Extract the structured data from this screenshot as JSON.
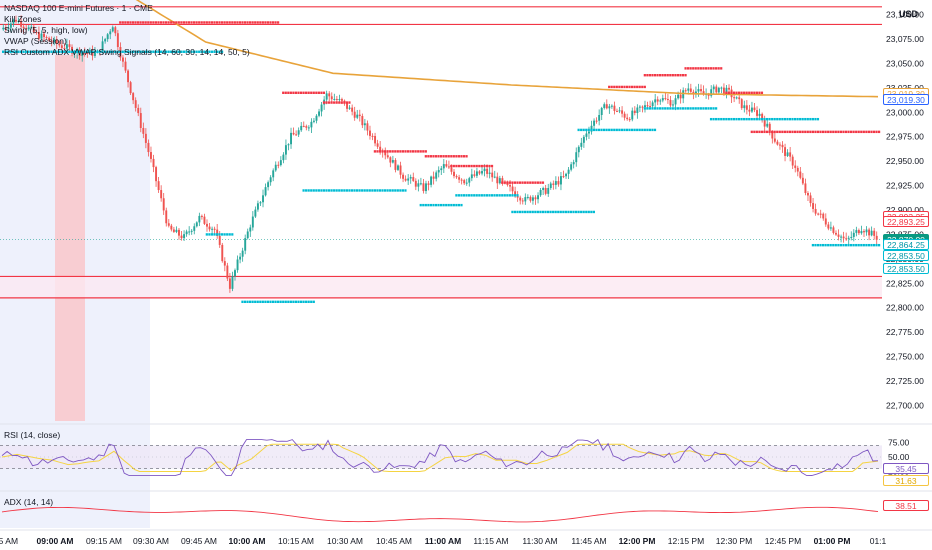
{
  "legend": {
    "main_title": "NASDAQ 100 E-mini Futures · 1 · CME",
    "lines": [
      "Kill Zones",
      "Swing (5, 5, high, low)",
      "VWAP (Session)",
      "RSI Custom ADX VWAP Swing Signals (14, 60, 30, 14, 14, 50, 5)"
    ]
  },
  "currency": "USD",
  "price_axis": {
    "ticks": [
      "23,100.00",
      "23,075.00",
      "23,050.00",
      "23,025.00",
      "23,000.00",
      "22,975.00",
      "22,950.00",
      "22,925.00",
      "22,900.00",
      "22,875.00",
      "22,850.00",
      "22,825.00",
      "22,800.00",
      "22,775.00",
      "22,750.00",
      "22,725.00",
      "22,700.00"
    ]
  },
  "price_tags": [
    {
      "label": "23,019.30",
      "value": 23019.3,
      "style": "outline-orange"
    },
    {
      "label": "23,019.30",
      "value": 23013.0,
      "style": "outline-blue"
    },
    {
      "label": "22,893.25",
      "value": 22893.25,
      "style": "outline-red"
    },
    {
      "label": "22,893.25",
      "value": 22888.0,
      "style": "outline-red"
    },
    {
      "label": "22,870.00",
      "value": 22870.0,
      "style": "fill-green"
    },
    {
      "label": "22,864.25",
      "value": 22864.25,
      "style": "outline-teal"
    },
    {
      "label": "22,853.50",
      "value": 22853.5,
      "style": "outline-teal"
    },
    {
      "label": "22,853.50",
      "value": 22840.0,
      "style": "outline-teal"
    }
  ],
  "time_axis": {
    "labels": [
      {
        "text": "45 AM",
        "bold": false
      },
      {
        "text": "09:00 AM",
        "bold": true
      },
      {
        "text": "09:15 AM",
        "bold": false
      },
      {
        "text": "09:30 AM",
        "bold": false
      },
      {
        "text": "09:45 AM",
        "bold": false
      },
      {
        "text": "10:00 AM",
        "bold": true
      },
      {
        "text": "10:15 AM",
        "bold": false
      },
      {
        "text": "10:30 AM",
        "bold": false
      },
      {
        "text": "10:45 AM",
        "bold": false
      },
      {
        "text": "11:00 AM",
        "bold": true
      },
      {
        "text": "11:15 AM",
        "bold": false
      },
      {
        "text": "11:30 AM",
        "bold": false
      },
      {
        "text": "11:45 AM",
        "bold": false
      },
      {
        "text": "12:00 PM",
        "bold": true
      },
      {
        "text": "12:15 PM",
        "bold": false
      },
      {
        "text": "12:30 PM",
        "bold": false
      },
      {
        "text": "12:45 PM",
        "bold": false
      },
      {
        "text": "01:00 PM",
        "bold": true
      },
      {
        "text": "01:1",
        "bold": false
      }
    ]
  },
  "rsi_pane": {
    "title": "RSI (14, close)",
    "ticks": [
      "75.00",
      "50.00",
      "25.00"
    ],
    "tags": [
      {
        "label": "35.45",
        "style": "outline-purple"
      },
      {
        "label": "31.63",
        "style": "outline-yellow"
      }
    ]
  },
  "adx_pane": {
    "title": "ADX (14, 14)",
    "tags": [
      {
        "label": "38.51",
        "style": "outline-red"
      }
    ]
  },
  "colors": {
    "up": "#26a69a",
    "down": "#ef5350",
    "vwap": "#e8a33a",
    "swing_high": "#f23645",
    "swing_low": "#00bcd4",
    "zone_line": "#f23645",
    "rsi": "#7e57c2",
    "rsi_ma": "#f5d442",
    "adx": "#f23645"
  },
  "chart_data": {
    "type": "candlestick",
    "symbol": "NASDAQ 100 E-mini Futures",
    "interval": "1",
    "price_range": [
      22685,
      23115
    ],
    "horizontal_levels": [
      23108,
      23090,
      22832,
      22810
    ],
    "anchors": [
      [
        0,
        23085
      ],
      [
        6,
        23095
      ],
      [
        14,
        23080
      ],
      [
        22,
        23070
      ],
      [
        30,
        23062
      ],
      [
        38,
        23060
      ],
      [
        44,
        23090
      ],
      [
        48,
        23050
      ],
      [
        58,
        22960
      ],
      [
        66,
        22880
      ],
      [
        72,
        22872
      ],
      [
        78,
        22892
      ],
      [
        84,
        22880
      ],
      [
        90,
        22822
      ],
      [
        98,
        22885
      ],
      [
        106,
        22935
      ],
      [
        114,
        22975
      ],
      [
        122,
        22990
      ],
      [
        128,
        23018
      ],
      [
        134,
        23010
      ],
      [
        140,
        22996
      ],
      [
        148,
        22968
      ],
      [
        158,
        22935
      ],
      [
        166,
        22922
      ],
      [
        174,
        22945
      ],
      [
        182,
        22930
      ],
      [
        190,
        22940
      ],
      [
        198,
        22925
      ],
      [
        206,
        22910
      ],
      [
        214,
        22920
      ],
      [
        222,
        22935
      ],
      [
        230,
        22980
      ],
      [
        238,
        23008
      ],
      [
        246,
        22995
      ],
      [
        252,
        23004
      ],
      [
        258,
        23015
      ],
      [
        264,
        23010
      ],
      [
        270,
        23025
      ],
      [
        276,
        23018
      ],
      [
        282,
        23025
      ],
      [
        286,
        23020
      ],
      [
        292,
        23005
      ],
      [
        298,
        22998
      ],
      [
        304,
        22972
      ],
      [
        312,
        22945
      ],
      [
        318,
        22905
      ],
      [
        326,
        22882
      ],
      [
        332,
        22868
      ],
      [
        338,
        22882
      ],
      [
        344,
        22872
      ]
    ],
    "vwap": [
      [
        0,
        23240
      ],
      [
        50,
        23120
      ],
      [
        80,
        23072
      ],
      [
        130,
        23040
      ],
      [
        200,
        23028
      ],
      [
        270,
        23019
      ],
      [
        344,
        23016
      ]
    ],
    "swing_high_levels": [
      {
        "from": 46,
        "to": 108,
        "price": 23092
      },
      {
        "from": 110,
        "to": 126,
        "price": 23020
      },
      {
        "from": 126,
        "to": 136,
        "price": 23010
      },
      {
        "from": 146,
        "to": 166,
        "price": 22960
      },
      {
        "from": 166,
        "to": 182,
        "price": 22955
      },
      {
        "from": 176,
        "to": 192,
        "price": 22945
      },
      {
        "from": 196,
        "to": 212,
        "price": 22928
      },
      {
        "from": 238,
        "to": 252,
        "price": 23026
      },
      {
        "from": 252,
        "to": 268,
        "price": 23038
      },
      {
        "from": 268,
        "to": 282,
        "price": 23045
      },
      {
        "from": 284,
        "to": 298,
        "price": 23020
      },
      {
        "from": 294,
        "to": 344,
        "price": 22980
      }
    ],
    "swing_low_levels": [
      {
        "from": 0,
        "to": 86,
        "price": 23062
      },
      {
        "from": 80,
        "to": 90,
        "price": 22875
      },
      {
        "from": 94,
        "to": 122,
        "price": 22806
      },
      {
        "from": 118,
        "to": 158,
        "price": 22920
      },
      {
        "from": 164,
        "to": 180,
        "price": 22905
      },
      {
        "from": 178,
        "to": 202,
        "price": 22915
      },
      {
        "from": 200,
        "to": 232,
        "price": 22898
      },
      {
        "from": 226,
        "to": 256,
        "price": 22982
      },
      {
        "from": 252,
        "to": 280,
        "price": 23004
      },
      {
        "from": 278,
        "to": 320,
        "price": 22993
      },
      {
        "from": 318,
        "to": 344,
        "price": 22864
      }
    ],
    "rsi": {
      "range": [
        0,
        100
      ],
      "levels": [
        70,
        30
      ]
    },
    "adx": {
      "range": [
        0,
        80
      ]
    }
  }
}
